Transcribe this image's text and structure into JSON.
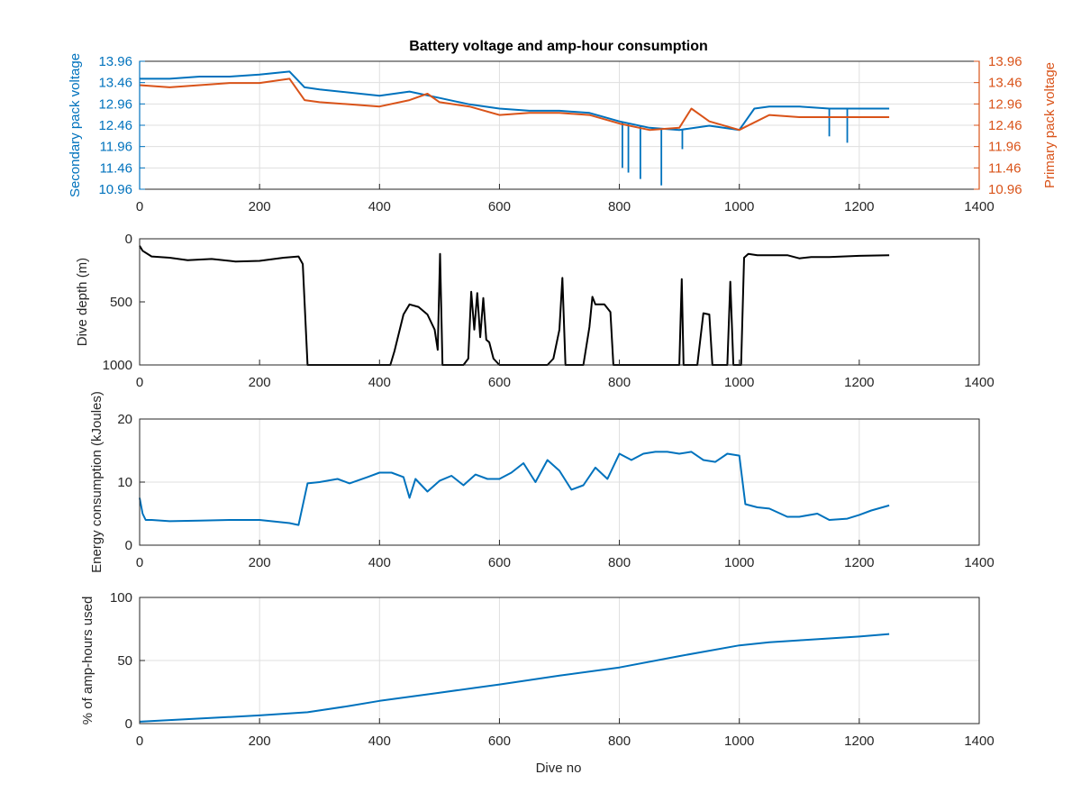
{
  "chart_data": [
    {
      "type": "line",
      "title": "Battery voltage and amp-hour consumption",
      "xlabel": "",
      "xlim": [
        0,
        1400
      ],
      "xticks": [
        "0",
        "200",
        "400",
        "600",
        "800",
        "1000",
        "1200",
        "1400"
      ],
      "ylabel_left": "Secondary pack voltage",
      "ylabel_right": "Primary pack voltage",
      "ylim": [
        10.96,
        13.96
      ],
      "yticks": [
        "10.96",
        "11.46",
        "11.96",
        "12.46",
        "12.96",
        "13.46",
        "13.96"
      ],
      "grid": true,
      "colors": {
        "left": "#0072bd",
        "right": "#d95319"
      },
      "series": [
        {
          "axis": "left",
          "color": "#0072bd",
          "x": [
            0,
            50,
            100,
            150,
            200,
            250,
            275,
            300,
            400,
            450,
            500,
            550,
            600,
            650,
            700,
            750,
            800,
            850,
            900,
            950,
            1000,
            1025,
            1050,
            1100,
            1150,
            1200,
            1250
          ],
          "y": [
            13.55,
            13.55,
            13.6,
            13.6,
            13.65,
            13.72,
            13.35,
            13.3,
            13.15,
            13.25,
            13.1,
            12.95,
            12.85,
            12.8,
            12.8,
            12.75,
            12.55,
            12.4,
            12.35,
            12.45,
            12.35,
            12.85,
            12.9,
            12.9,
            12.85,
            12.85,
            12.85
          ],
          "spikes": [
            [
              805,
              11.46
            ],
            [
              815,
              11.35
            ],
            [
              835,
              11.2
            ],
            [
              870,
              11.05
            ],
            [
              905,
              11.9
            ],
            [
              1150,
              12.2
            ],
            [
              1180,
              12.05
            ]
          ]
        },
        {
          "axis": "right",
          "color": "#d95319",
          "x": [
            0,
            50,
            100,
            150,
            200,
            250,
            275,
            300,
            350,
            400,
            450,
            480,
            500,
            550,
            600,
            650,
            700,
            750,
            800,
            850,
            900,
            920,
            950,
            1000,
            1050,
            1100,
            1150,
            1200,
            1250
          ],
          "y": [
            13.4,
            13.35,
            13.4,
            13.45,
            13.45,
            13.55,
            13.05,
            13.0,
            12.95,
            12.9,
            13.05,
            13.2,
            13.0,
            12.9,
            12.7,
            12.75,
            12.75,
            12.7,
            12.5,
            12.35,
            12.4,
            12.85,
            12.55,
            12.35,
            12.7,
            12.65,
            12.65,
            12.65,
            12.65
          ]
        }
      ]
    },
    {
      "type": "line",
      "xlabel": "",
      "ylabel": "Dive depth (m)",
      "xlim": [
        0,
        1400
      ],
      "ylim": [
        0,
        1000
      ],
      "y_reversed": true,
      "xticks": [
        "0",
        "200",
        "400",
        "600",
        "800",
        "1000",
        "1200",
        "1400"
      ],
      "yticks": [
        "0",
        "500",
        "1000"
      ],
      "grid": false,
      "series": [
        {
          "color": "#000000",
          "x": [
            0,
            5,
            20,
            50,
            80,
            120,
            160,
            200,
            240,
            265,
            272,
            280,
            285,
            300,
            350,
            400,
            418,
            425,
            440,
            450,
            465,
            480,
            492,
            497,
            501,
            505,
            512,
            515,
            540,
            548,
            553,
            558,
            563,
            568,
            573,
            578,
            583,
            590,
            600,
            610,
            640,
            680,
            690,
            700,
            705,
            710,
            715,
            720,
            740,
            750,
            755,
            760,
            775,
            785,
            790,
            800,
            850,
            900,
            904,
            907,
            912,
            915,
            930,
            940,
            950,
            955,
            975,
            980,
            985,
            990,
            995,
            1000,
            1003,
            1008,
            1015,
            1030,
            1050,
            1080,
            1100,
            1120,
            1150,
            1200,
            1250
          ],
          "y": [
            55,
            95,
            140,
            150,
            170,
            160,
            180,
            175,
            150,
            140,
            200,
            1000,
            1000,
            1000,
            1000,
            1000,
            1000,
            890,
            600,
            520,
            540,
            600,
            720,
            880,
            120,
            1000,
            1000,
            1000,
            1000,
            950,
            420,
            720,
            430,
            780,
            470,
            800,
            820,
            950,
            1000,
            1000,
            1000,
            1000,
            950,
            720,
            310,
            1000,
            1000,
            1000,
            1000,
            700,
            460,
            520,
            520,
            580,
            1000,
            1000,
            1000,
            1000,
            320,
            1000,
            1000,
            1000,
            1000,
            590,
            600,
            1000,
            1000,
            1000,
            340,
            1000,
            1000,
            1000,
            1000,
            150,
            120,
            130,
            130,
            130,
            155,
            145,
            145,
            135,
            130
          ]
        }
      ]
    },
    {
      "type": "line",
      "xlabel": "",
      "ylabel": "Energy consumption (kJoules)",
      "xlim": [
        0,
        1400
      ],
      "ylim": [
        0,
        20
      ],
      "xticks": [
        "0",
        "200",
        "400",
        "600",
        "800",
        "1000",
        "1200",
        "1400"
      ],
      "yticks": [
        "0",
        "10",
        "20"
      ],
      "grid": true,
      "series": [
        {
          "color": "#0072bd",
          "x": [
            0,
            5,
            10,
            20,
            50,
            100,
            150,
            200,
            250,
            265,
            280,
            300,
            330,
            350,
            380,
            400,
            420,
            440,
            450,
            460,
            480,
            500,
            520,
            540,
            560,
            580,
            600,
            620,
            640,
            660,
            680,
            700,
            720,
            740,
            760,
            780,
            800,
            820,
            840,
            860,
            880,
            900,
            920,
            940,
            960,
            980,
            1000,
            1010,
            1030,
            1050,
            1080,
            1100,
            1130,
            1150,
            1180,
            1200,
            1220,
            1250
          ],
          "y": [
            7.5,
            5.0,
            4.0,
            4.0,
            3.8,
            3.9,
            4.0,
            4.0,
            3.5,
            3.2,
            9.8,
            10.0,
            10.5,
            9.8,
            10.8,
            11.5,
            11.5,
            10.8,
            7.5,
            10.5,
            8.5,
            10.2,
            11.0,
            9.5,
            11.2,
            10.5,
            10.5,
            11.5,
            13.0,
            10.0,
            13.5,
            11.8,
            8.8,
            9.5,
            12.3,
            10.5,
            14.5,
            13.5,
            14.5,
            14.8,
            14.8,
            14.5,
            14.8,
            13.5,
            13.2,
            14.5,
            14.2,
            6.5,
            6.0,
            5.8,
            4.5,
            4.5,
            5.0,
            4.0,
            4.2,
            4.8,
            5.5,
            6.3
          ]
        }
      ]
    },
    {
      "type": "line",
      "xlabel": "Dive no",
      "ylabel": "% of amp-hours used",
      "xlim": [
        0,
        1400
      ],
      "ylim": [
        0,
        100
      ],
      "xticks": [
        "0",
        "200",
        "400",
        "600",
        "800",
        "1000",
        "1200",
        "1400"
      ],
      "yticks": [
        "0",
        "50",
        "100"
      ],
      "grid": true,
      "series": [
        {
          "color": "#0072bd",
          "x": [
            0,
            100,
            200,
            280,
            350,
            400,
            500,
            600,
            700,
            800,
            900,
            1000,
            1050,
            1100,
            1150,
            1200,
            1250
          ],
          "y": [
            1.5,
            4.0,
            6.5,
            9.0,
            14.0,
            18.0,
            24.5,
            31.0,
            38.0,
            44.5,
            53.5,
            62.0,
            64.5,
            66.0,
            67.5,
            69.0,
            71.0
          ]
        }
      ]
    }
  ]
}
